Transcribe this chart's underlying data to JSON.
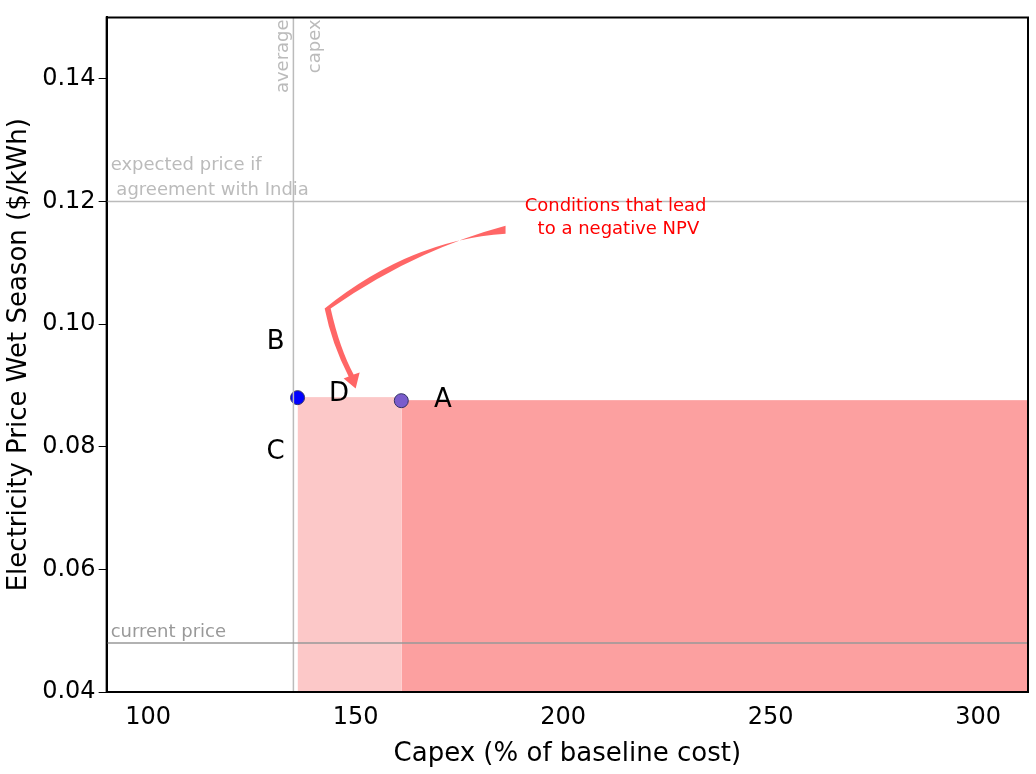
{
  "chart_data": {
    "type": "scatter",
    "xlabel": "Capex (% of baseline cost)",
    "ylabel": "Electricity Price Wet Season ($/kWh)",
    "xlim": [
      90,
      312
    ],
    "xticks": [
      100,
      150,
      200,
      250,
      300
    ],
    "ylim": [
      0.04,
      0.15
    ],
    "yticks": [
      0.04,
      0.06,
      0.08,
      {
        "value": 0.1,
        "label": "0.10"
      },
      0.12,
      0.14
    ],
    "grid": false,
    "legend": false,
    "series": [
      {
        "type": "area",
        "color": "#fcc8c8",
        "x": [
          136,
          161
        ],
        "values": [
          0.088,
          0.088
        ]
      },
      {
        "type": "area",
        "color": "#fca0a0",
        "x": [
          161,
          312
        ],
        "values": [
          0.0875,
          0.0875
        ]
      },
      {
        "marker": "circle",
        "colors": [
          "#0000ff",
          "#7a5ccc"
        ],
        "x": [
          136,
          161
        ],
        "values": [
          0.088,
          0.0875
        ]
      }
    ],
    "ref_lines": [
      {
        "axis": "x",
        "value": 135,
        "label": "average\ncapex",
        "color": "#bbbbbb"
      },
      {
        "axis": "y",
        "value": 0.12,
        "label": "expected price if\n agreement with India",
        "color": "#bbbbbb"
      },
      {
        "axis": "y",
        "value": 0.048,
        "label": "current price",
        "color": "#999999"
      }
    ],
    "annotations": [
      {
        "text": "A",
        "x": 171,
        "y": 0.0875
      },
      "B",
      "C",
      {
        "text": "D",
        "x": 146,
        "y": 0.0885
      },
      "Conditions that lead\n to a negative NPV"
    ]
  }
}
